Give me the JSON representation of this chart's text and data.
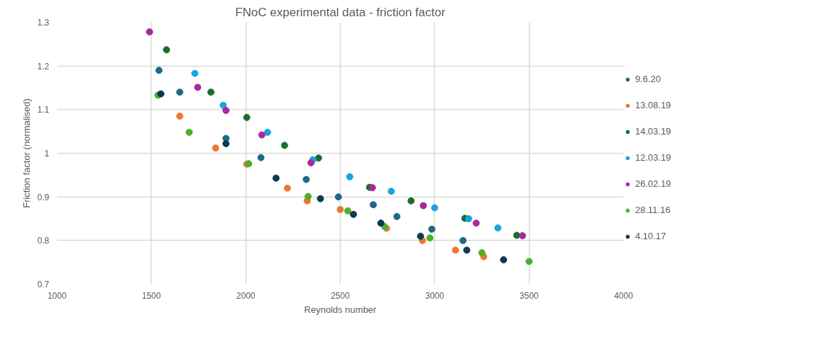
{
  "chart_data": {
    "type": "scatter",
    "title": "FNoC experimental data - friction factor",
    "xlabel": "Reynolds number",
    "ylabel": "Friction factor (normalised)",
    "xlim": [
      1000,
      4000
    ],
    "xticks": [
      1000,
      1500,
      2000,
      2500,
      3000,
      3500,
      4000
    ],
    "ylim": [
      0.7,
      1.3
    ],
    "yticks": [
      0.7,
      0.8,
      0.9,
      1,
      1.1,
      1.2,
      1.3
    ],
    "grid": true,
    "legend": "right",
    "marker": "circle",
    "series": [
      {
        "name": "9.6.20",
        "color": "#1a6a8a",
        "x": [
          1540,
          1650,
          1895,
          2080,
          2320,
          2490,
          2675,
          2800,
          2985,
          3150
        ],
        "values": [
          1.19,
          1.14,
          1.034,
          0.99,
          0.94,
          0.9,
          0.882,
          0.855,
          0.826,
          0.8
        ]
      },
      {
        "name": "13.08.19",
        "color": "#ee7733",
        "x": [
          1650,
          1840,
          2005,
          2220,
          2325,
          2500,
          2745,
          2935,
          3110,
          3260
        ],
        "values": [
          1.085,
          1.012,
          0.975,
          0.92,
          0.891,
          0.871,
          0.828,
          0.8,
          0.778,
          0.763
        ]
      },
      {
        "name": "14.03.19",
        "color": "#1b6e2a",
        "x": [
          1580,
          1815,
          2005,
          2205,
          2385,
          2655,
          2875,
          3160,
          3435
        ],
        "values": [
          1.237,
          1.14,
          1.082,
          1.018,
          0.989,
          0.922,
          0.891,
          0.851,
          0.812
        ]
      },
      {
        "name": "12.03.19",
        "color": "#1aa3dd",
        "x": [
          1730,
          1880,
          2115,
          2355,
          2550,
          2770,
          3000,
          3180,
          3335
        ],
        "values": [
          1.183,
          1.11,
          1.048,
          0.985,
          0.946,
          0.913,
          0.875,
          0.85,
          0.829
        ]
      },
      {
        "name": "26.02.19",
        "color": "#a32b9e",
        "x": [
          1490,
          1745,
          1895,
          2085,
          2345,
          2670,
          2940,
          3220,
          3465
        ],
        "values": [
          1.278,
          1.151,
          1.098,
          1.042,
          0.978,
          0.921,
          0.88,
          0.84,
          0.811
        ]
      },
      {
        "name": "28.11.16",
        "color": "#4caf2f",
        "x": [
          1535,
          1700,
          2015,
          2330,
          2540,
          2735,
          2975,
          3250,
          3500
        ],
        "values": [
          1.133,
          1.048,
          0.976,
          0.901,
          0.868,
          0.832,
          0.806,
          0.772,
          0.752
        ]
      },
      {
        "name": "4.10.17",
        "color": "#0c3a52",
        "x": [
          1550,
          1895,
          2160,
          2395,
          2570,
          2715,
          2925,
          3170,
          3365
        ],
        "values": [
          1.136,
          1.022,
          0.943,
          0.896,
          0.86,
          0.84,
          0.81,
          0.778,
          0.756
        ]
      }
    ]
  }
}
